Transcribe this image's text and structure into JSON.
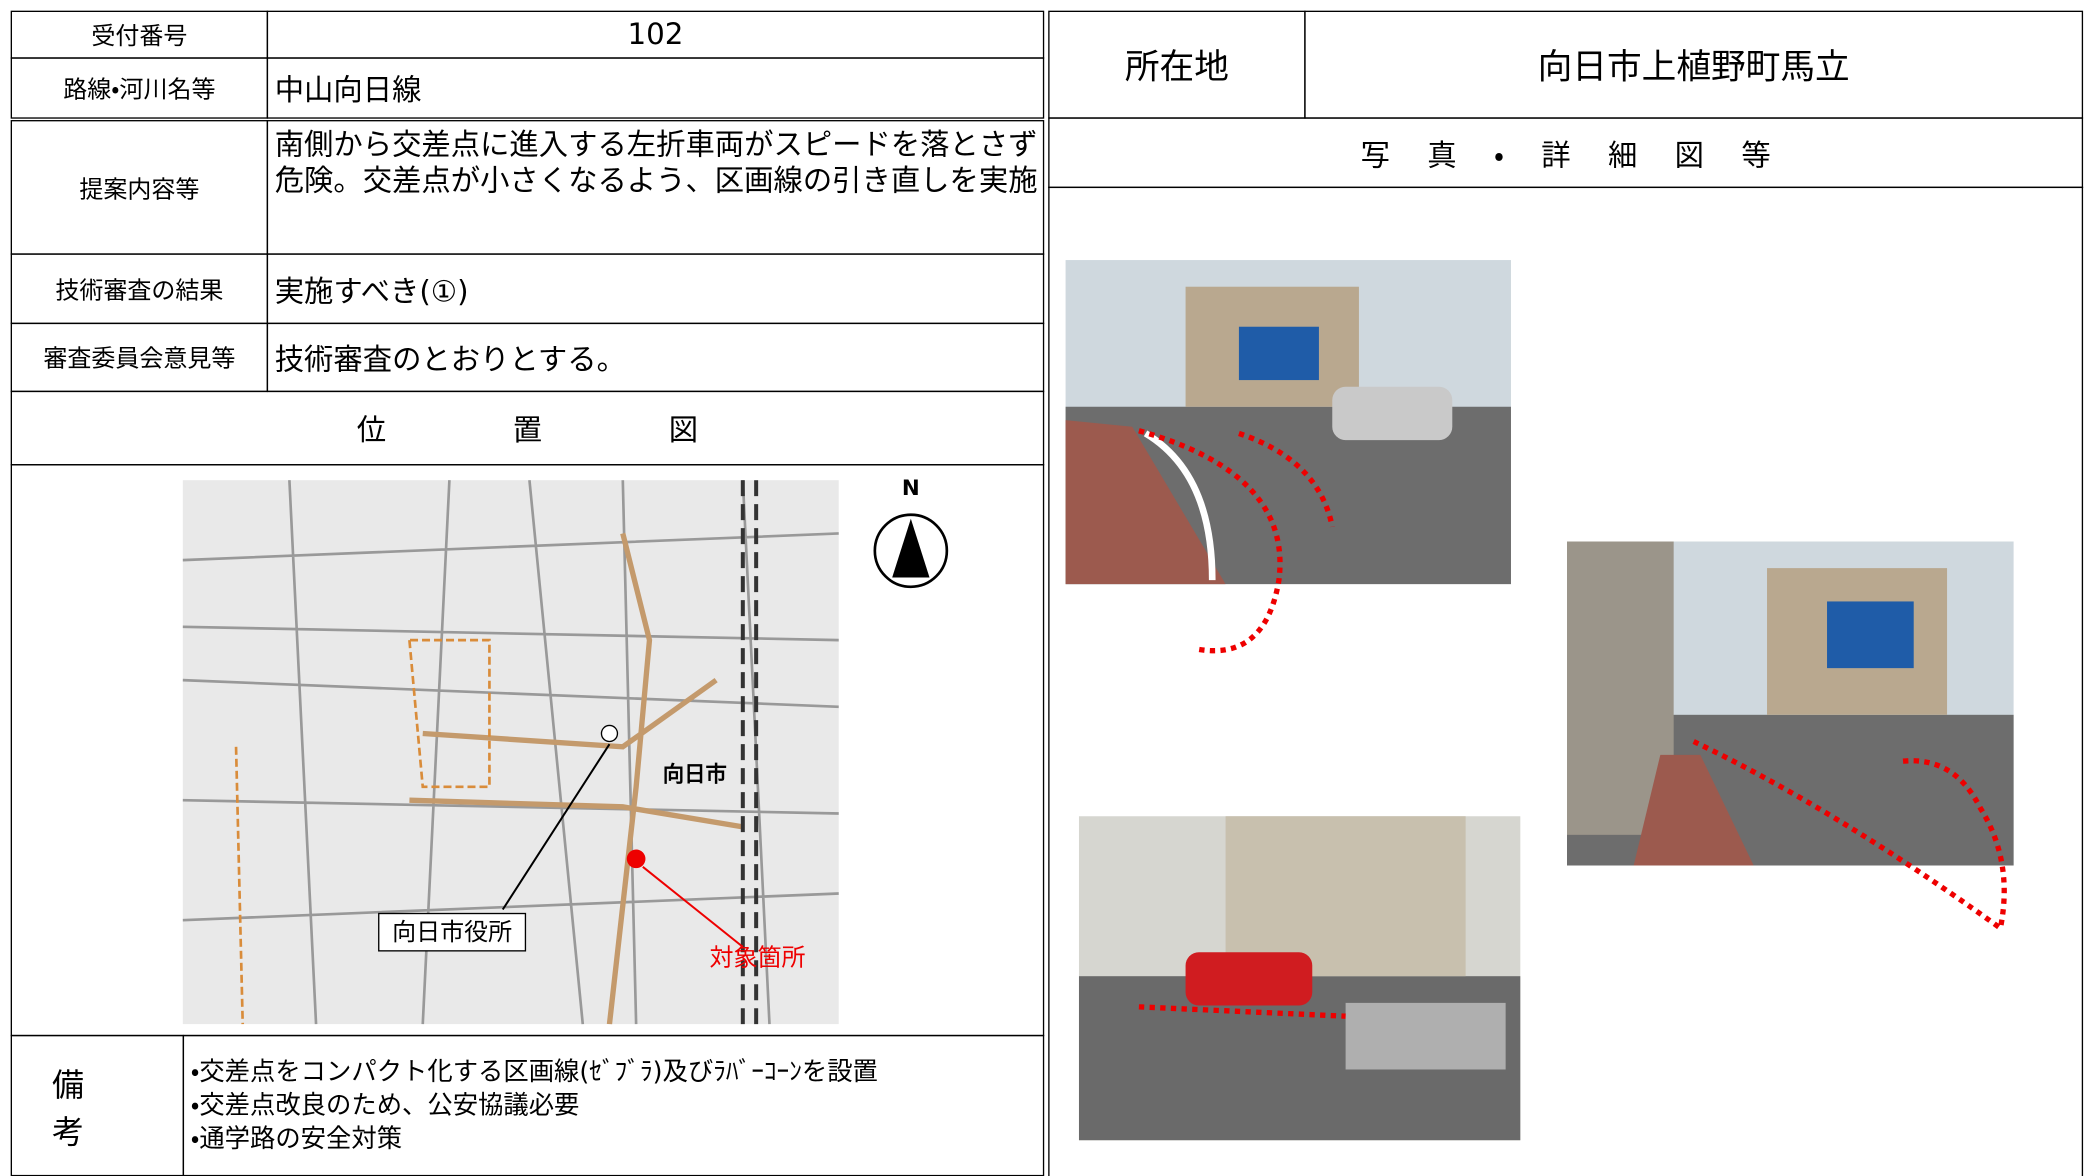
{
  "header": {
    "reception_number_label": "受付番号",
    "reception_number": "102",
    "route_label": "路線・河川名等",
    "route": "中山向日線",
    "location_label": "所在地",
    "location": "向日市上植野町馬立"
  },
  "proposal": {
    "label": "提案内容等",
    "text": "南側から交差点に進入する左折車両がスピードを落とさず危険。交差点が小さくなるよう、区画線の引き直しを実施"
  },
  "review": {
    "label": "技術審査の結果",
    "text": "実施すべき(①)"
  },
  "committee": {
    "label": "審査委員会意見等",
    "text": "技術審査のとおりとする。"
  },
  "map": {
    "title": "位置図",
    "north": "N",
    "city": "向日市",
    "city_hall": "向日市役所",
    "target": "対象箇所"
  },
  "photos": {
    "title": "写真・詳細図等"
  },
  "remarks": {
    "label": "備考",
    "items": [
      "・交差点をコンパクト化する区画線(ｾﾞﾌﾞﾗ)及びﾗﾊﾞｰｺｰﾝを設置",
      "・交差点改良のため、公安協議必要",
      "・通学路の安全対策"
    ]
  }
}
